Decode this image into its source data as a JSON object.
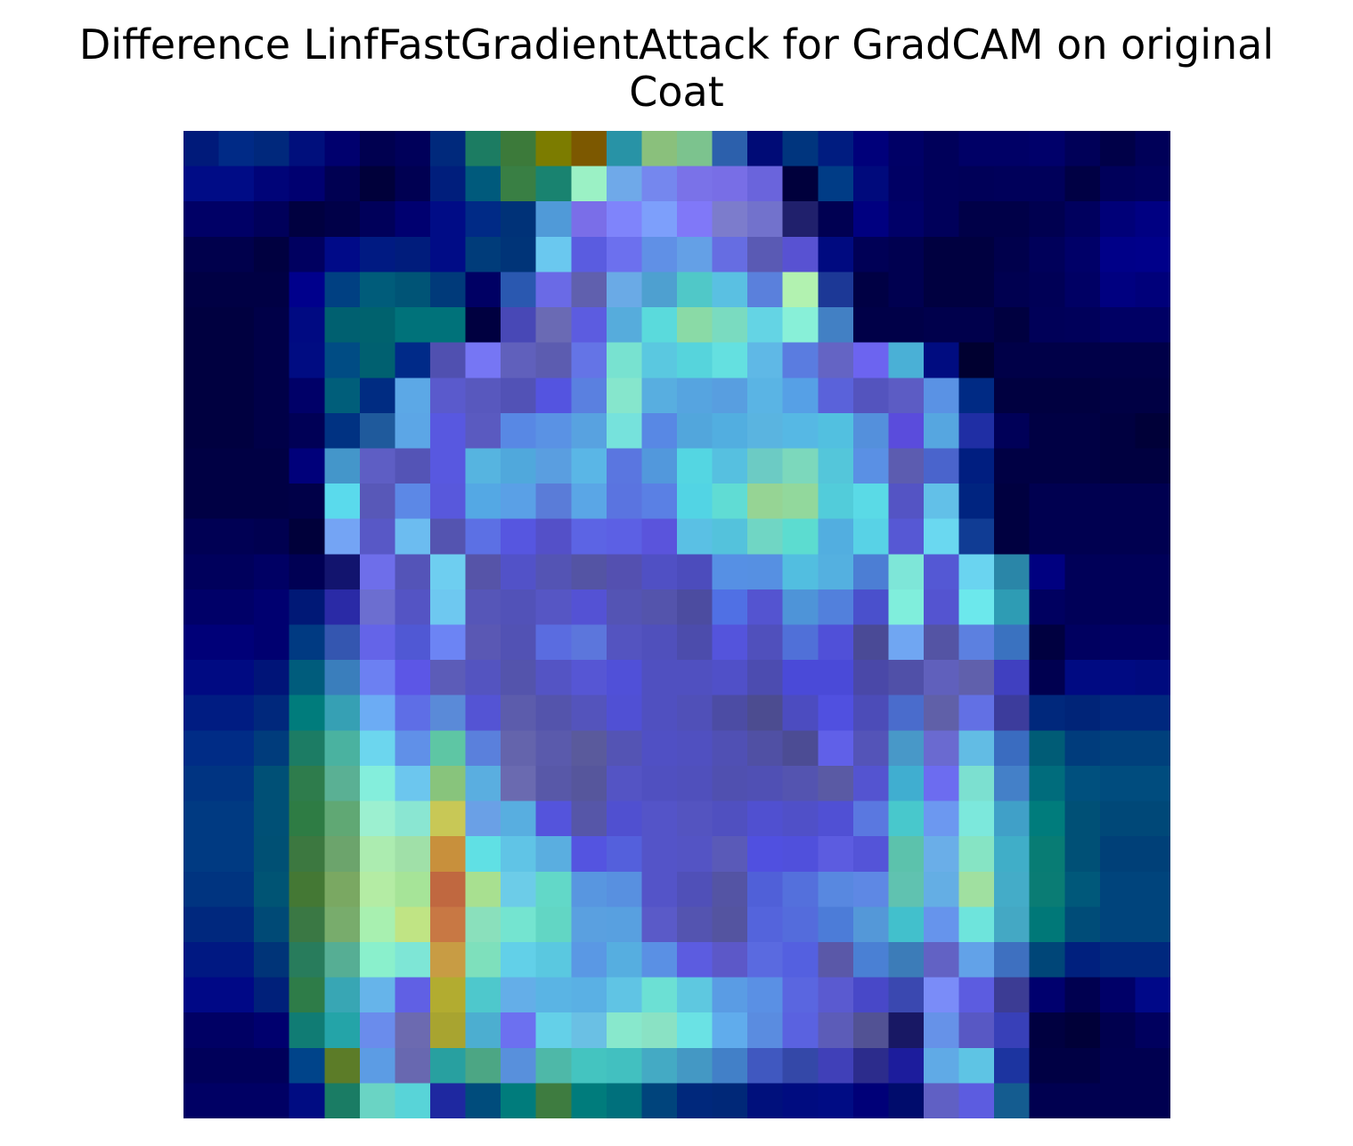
{
  "chart_data": {
    "type": "heatmap",
    "title": "Difference LinfFastGradientAttack for GradCAM on original",
    "subtitle": "Coat",
    "xlabel": "",
    "ylabel": "",
    "axes_visible": false,
    "grid": false,
    "rows": 28,
    "cols": 28,
    "colormap": "jet blended over grayscale image",
    "cells": [
      [
        "#001a7a",
        "#002a86",
        "#00287c",
        "#000f7c",
        "#00006e",
        "#000050",
        "#00005a",
        "#00297c",
        "#1c7c62",
        "#3c7a3a",
        "#7c7c00",
        "#7c5800",
        "#2893a6",
        "#8ac07c",
        "#7cc38e",
        "#2c60ac",
        "#000b76",
        "#00357e",
        "#001c80",
        "#00007a",
        "#000066",
        "#00005a",
        "#000066",
        "#000066",
        "#00006a",
        "#000058",
        "#000048",
        "#000058"
      ],
      [
        "#000c86",
        "#000c86",
        "#000478",
        "#000070",
        "#000052",
        "#00003a",
        "#000052",
        "#001e7c",
        "#005a7c",
        "#397f44",
        "#198370",
        "#9bf1c5",
        "#6fa9e9",
        "#7587ee",
        "#7a72e8",
        "#786ee6",
        "#6a64dc",
        "#00003c",
        "#003c86",
        "#000a7c",
        "#000064",
        "#00005a",
        "#000058",
        "#00005a",
        "#00005a",
        "#000044",
        "#00005a",
        "#00005e"
      ],
      [
        "#000066",
        "#000066",
        "#00005a",
        "#000040",
        "#000048",
        "#00005a",
        "#000070",
        "#000c86",
        "#002a86",
        "#003278",
        "#509ad8",
        "#7a6ee8",
        "#7f84fb",
        "#7d9ffb",
        "#8078f8",
        "#7c7ccc",
        "#7272cc",
        "#20206c",
        "#000052",
        "#000080",
        "#000068",
        "#00005a",
        "#000048",
        "#000048",
        "#000050",
        "#00005e",
        "#000078",
        "#000082"
      ],
      [
        "#00004c",
        "#00004c",
        "#000040",
        "#000060",
        "#000a88",
        "#001a82",
        "#001c7c",
        "#000c86",
        "#003c7a",
        "#003478",
        "#6ac8ef",
        "#5a5ce0",
        "#6c70ee",
        "#6090e6",
        "#64a0e6",
        "#666de2",
        "#5a5ab4",
        "#5852d2",
        "#000a80",
        "#000056",
        "#000050",
        "#000040",
        "#000040",
        "#00004c",
        "#00005a",
        "#000068",
        "#000088",
        "#00008a"
      ],
      [
        "#000044",
        "#000044",
        "#000044",
        "#00008c",
        "#004082",
        "#005c7a",
        "#005476",
        "#003a7a",
        "#000064",
        "#2a58b0",
        "#6a6ae6",
        "#6060ae",
        "#6aaae6",
        "#4ea0d0",
        "#50c8c8",
        "#5ac0e2",
        "#5a80dc",
        "#b2f2b0",
        "#1c3896",
        "#000044",
        "#000050",
        "#000040",
        "#000040",
        "#000050",
        "#000056",
        "#000064",
        "#000080",
        "#00007a"
      ],
      [
        "#000040",
        "#000040",
        "#000048",
        "#000a82",
        "#006070",
        "#00626e",
        "#00727a",
        "#00727a",
        "#000040",
        "#4848b6",
        "#6a6ab4",
        "#5c5ce0",
        "#56acdc",
        "#5adadc",
        "#8adaa6",
        "#7adbc0",
        "#64d4e4",
        "#88f0d8",
        "#4280c4",
        "#000048",
        "#000048",
        "#00004c",
        "#00004c",
        "#000040",
        "#000058",
        "#00005a",
        "#000064",
        "#000064"
      ],
      [
        "#000040",
        "#000040",
        "#000048",
        "#000c82",
        "#004c84",
        "#006070",
        "#002a88",
        "#5050b0",
        "#7676f4",
        "#6060bc",
        "#5c5cb0",
        "#6474e6",
        "#78e2d0",
        "#5ac8e0",
        "#56d4dc",
        "#64e0e0",
        "#5fb8e6",
        "#5a7ce0",
        "#6464c4",
        "#6c64f0",
        "#4ab0d6",
        "#000c80",
        "#000030",
        "#000048",
        "#000048",
        "#000048",
        "#000048",
        "#000048"
      ],
      [
        "#000040",
        "#000040",
        "#000048",
        "#000068",
        "#005e7a",
        "#002c82",
        "#5ca8e6",
        "#5a5acc",
        "#5858be",
        "#5252b6",
        "#5454e0",
        "#5a80e0",
        "#86e6cc",
        "#58aee0",
        "#56a4e0",
        "#589ee0",
        "#5ab4e4",
        "#56a0e6",
        "#5a62da",
        "#5454be",
        "#5c5cc4",
        "#5a92e4",
        "#002a84",
        "#000040",
        "#000040",
        "#000040",
        "#000044",
        "#000044"
      ],
      [
        "#000040",
        "#000040",
        "#000048",
        "#000056",
        "#003282",
        "#1f5a9c",
        "#5ca6e6",
        "#5858e0",
        "#5a5ac0",
        "#5888e4",
        "#5a92e4",
        "#58a2e0",
        "#76e2dc",
        "#5888e4",
        "#52a6dc",
        "#52aee0",
        "#5ab4e0",
        "#56b8e4",
        "#52c0e0",
        "#5490dc",
        "#5a4cdc",
        "#56a6e0",
        "#1f2ea4",
        "#000058",
        "#000044",
        "#000044",
        "#000040",
        "#000038"
      ],
      [
        "#000044",
        "#000044",
        "#000044",
        "#00007a",
        "#4496ca",
        "#5e5ec4",
        "#5454b6",
        "#5858e0",
        "#56b4e0",
        "#50a8dc",
        "#5a9ee0",
        "#5ab6e6",
        "#5a76e0",
        "#5298dc",
        "#54d6e2",
        "#56c0e0",
        "#6ccbc4",
        "#7cd8bc",
        "#54c6da",
        "#5a90e4",
        "#5c5cb0",
        "#4a64cc",
        "#001e80",
        "#000044",
        "#000044",
        "#000044",
        "#000040",
        "#000040"
      ],
      [
        "#000044",
        "#000044",
        "#000044",
        "#000048",
        "#5adaec",
        "#5858b8",
        "#5c88e6",
        "#5858dc",
        "#54a8e4",
        "#5aa0e6",
        "#5a7cd8",
        "#5aa6e6",
        "#5a74e0",
        "#5a80e4",
        "#52d4e4",
        "#60dcd4",
        "#96d494",
        "#92d89c",
        "#52ccda",
        "#5adae6",
        "#5454c4",
        "#62c0e8",
        "#002480",
        "#000040",
        "#000050",
        "#000050",
        "#000050",
        "#000050"
      ],
      [
        "#000054",
        "#000054",
        "#000050",
        "#00003a",
        "#74a4f4",
        "#5858c6",
        "#6cbcf0",
        "#5454b0",
        "#5c70e4",
        "#5656e0",
        "#5450c8",
        "#5c64e4",
        "#5c60e4",
        "#5a54dc",
        "#5ac0e4",
        "#54c2dc",
        "#70d6c4",
        "#5cdcd0",
        "#52aee0",
        "#58d2e6",
        "#5658d4",
        "#6ad8f0",
        "#103c94",
        "#000040",
        "#000050",
        "#000050",
        "#000050",
        "#000050"
      ],
      [
        "#00005c",
        "#00005c",
        "#000064",
        "#000054",
        "#12146e",
        "#6e6eea",
        "#5454b8",
        "#6ecef0",
        "#5654a8",
        "#5252c8",
        "#5454b4",
        "#5454a4",
        "#5450b0",
        "#5050c4",
        "#4c4cbc",
        "#5690e4",
        "#5690e2",
        "#52bee0",
        "#54b0e0",
        "#4c7ed4",
        "#7ee6d8",
        "#5458d4",
        "#6ad4f0",
        "#2a86a8",
        "#000080",
        "#000058",
        "#000058",
        "#000058"
      ],
      [
        "#000068",
        "#000068",
        "#000070",
        "#001876",
        "#2a2aa6",
        "#6c6ed0",
        "#5454c4",
        "#6ec8f0",
        "#5656b8",
        "#5252b8",
        "#5656c4",
        "#5452d4",
        "#5454b4",
        "#5454ac",
        "#4c4ca0",
        "#5070e4",
        "#5454d0",
        "#4e94d8",
        "#5280dc",
        "#4a50cc",
        "#80eedc",
        "#5454d0",
        "#6ce8ec",
        "#2e9cb4",
        "#000060",
        "#000058",
        "#000058",
        "#000058"
      ],
      [
        "#000078",
        "#000078",
        "#000070",
        "#003a82",
        "#3456b0",
        "#6464e8",
        "#5058d4",
        "#6c84f4",
        "#5a58b4",
        "#5252b4",
        "#5a6ce0",
        "#5c76dc",
        "#5454c0",
        "#5050bc",
        "#4c4cac",
        "#5454dc",
        "#5050bc",
        "#5070d8",
        "#5050d8",
        "#4a4a96",
        "#70a6f2",
        "#5454a4",
        "#5c80e0",
        "#3a72c0",
        "#000040",
        "#000060",
        "#000064",
        "#000064"
      ],
      [
        "#000a82",
        "#000a82",
        "#001478",
        "#005c7c",
        "#3a7ebc",
        "#6c80f2",
        "#5c56e6",
        "#5c5cb8",
        "#5454c0",
        "#5454ac",
        "#5454c4",
        "#5656d4",
        "#5050d8",
        "#5050c0",
        "#5050c0",
        "#5050c8",
        "#4c4cb0",
        "#4a4ad8",
        "#4a4ad8",
        "#4a48a8",
        "#5050a8",
        "#6060bc",
        "#6060ac",
        "#4040c0",
        "#000050",
        "#000a82",
        "#000a82",
        "#000a7e"
      ],
      [
        "#001c82",
        "#001c82",
        "#00287c",
        "#007c7c",
        "#36a0b4",
        "#6cacf4",
        "#5e6ee6",
        "#5a8ad8",
        "#5454d4",
        "#5c5cac",
        "#5454ac",
        "#5454bc",
        "#5050d4",
        "#5050c0",
        "#5050b8",
        "#4c4ca4",
        "#4c4c90",
        "#4c4cc0",
        "#5050e0",
        "#4c4cb8",
        "#4a6ccc",
        "#6060a8",
        "#6270e4",
        "#3c3c9c",
        "#00287c",
        "#002478",
        "#00287e",
        "#00287e"
      ],
      [
        "#002c86",
        "#002c86",
        "#003c7c",
        "#1c7c64",
        "#4ab2a0",
        "#6cd6ee",
        "#6090e8",
        "#5ec6a4",
        "#5a80dc",
        "#6464ac",
        "#5a5aac",
        "#5a5a9c",
        "#5454b4",
        "#5050c4",
        "#5050c0",
        "#5050b4",
        "#5050a4",
        "#4c4c94",
        "#6060e8",
        "#5454b8",
        "#4898c8",
        "#6a6ad0",
        "#62bce4",
        "#3a6cc0",
        "#005c76",
        "#003c7c",
        "#00407c",
        "#00407c"
      ],
      [
        "#003482",
        "#003482",
        "#005076",
        "#2e7c4c",
        "#5ab094",
        "#84eedc",
        "#6cc6ee",
        "#88c47c",
        "#5aaee0",
        "#6a6ab0",
        "#5858a8",
        "#56569c",
        "#5454c4",
        "#5050c0",
        "#5050bc",
        "#5050b0",
        "#5050b4",
        "#5454b0",
        "#5a5aa4",
        "#5454d0",
        "#40aed0",
        "#6c6cf0",
        "#7ce0d0",
        "#4480c8",
        "#006c7c",
        "#00507e",
        "#004c7e",
        "#004c7e"
      ],
      [
        "#003a82",
        "#003a82",
        "#005076",
        "#2e7c44",
        "#60a874",
        "#9cf0d0",
        "#8ae6d2",
        "#c8c856",
        "#6aa0e6",
        "#58aee0",
        "#5454dc",
        "#5656a8",
        "#5050d0",
        "#5454c8",
        "#5454c0",
        "#5050c0",
        "#5050d0",
        "#5050c8",
        "#5050d4",
        "#5a78e0",
        "#48c8cc",
        "#6c98f0",
        "#7ce8dc",
        "#40a0c8",
        "#007c7c",
        "#005076",
        "#004878",
        "#004878"
      ],
      [
        "#003a82",
        "#003a82",
        "#005074",
        "#3c7840",
        "#6ca46c",
        "#acecb0",
        "#a0e0a8",
        "#c8903c",
        "#60e0e4",
        "#60c4e6",
        "#5aaee0",
        "#5454e0",
        "#5460dc",
        "#5454c8",
        "#5454c4",
        "#5a5ab8",
        "#5050e0",
        "#5050dc",
        "#5c5ce0",
        "#5454d8",
        "#5cc2ac",
        "#6aaee8",
        "#86e4c4",
        "#40aec8",
        "#087c74",
        "#005076",
        "#004078",
        "#004078"
      ],
      [
        "#003480",
        "#003480",
        "#005474",
        "#447834",
        "#7aa862",
        "#b4eca4",
        "#a6e498",
        "#c06840",
        "#a8e090",
        "#6ccce8",
        "#62d8c8",
        "#5896e0",
        "#5890e0",
        "#5454c8",
        "#5050b8",
        "#5454a4",
        "#5060d8",
        "#5470dc",
        "#5888e0",
        "#5e88e4",
        "#60c2b0",
        "#64aee4",
        "#a0e0a0",
        "#44acc8",
        "#0a7c74",
        "#00587a",
        "#00447c",
        "#00447c"
      ],
      [
        "#00287e",
        "#00287e",
        "#004a76",
        "#3a7844",
        "#78ac6c",
        "#a8f0b0",
        "#c0e484",
        "#c87844",
        "#8ae0bc",
        "#74e4d0",
        "#62d6c4",
        "#5aa0e0",
        "#58a0e0",
        "#5a5ac8",
        "#5454b0",
        "#5454a0",
        "#5464dc",
        "#546cdc",
        "#4c7cd8",
        "#5498d8",
        "#42c0cc",
        "#6694ec",
        "#6ee4dc",
        "#44a8c4",
        "#007878",
        "#004c78",
        "#00447c",
        "#00447c"
      ],
      [
        "#001882",
        "#001882",
        "#003478",
        "#287c5c",
        "#56ae94",
        "#8af0cc",
        "#7ee6d6",
        "#c89c44",
        "#7ee0bc",
        "#62d0e8",
        "#5ac8e0",
        "#5a98e4",
        "#56aee0",
        "#5a90e4",
        "#5c5ce0",
        "#5c58c8",
        "#5a6ae0",
        "#5460e0",
        "#5a58a8",
        "#4a80d4",
        "#3c7cb8",
        "#6262c4",
        "#62a2e8",
        "#3e70c0",
        "#004678",
        "#00207e",
        "#00287e",
        "#00287e"
      ],
      [
        "#000886",
        "#000886",
        "#00207a",
        "#2e7c48",
        "#38a6b4",
        "#66b4ea",
        "#6060e4",
        "#b2ac30",
        "#4ec8cc",
        "#64aee8",
        "#5ab4e4",
        "#5ab0e4",
        "#60c4e4",
        "#6ce0d4",
        "#5ec8e0",
        "#5a9ce4",
        "#5a90e4",
        "#5a66e0",
        "#5a5ad0",
        "#4848c8",
        "#3a48b0",
        "#7a8cf8",
        "#5c5ce0",
        "#3c3c94",
        "#00006e",
        "#000050",
        "#000068",
        "#000888"
      ],
      [
        "#000064",
        "#000064",
        "#00006e",
        "#107c74",
        "#24a4a8",
        "#6a8cec",
        "#6c6ab0",
        "#a8a430",
        "#4caed0",
        "#6c70f0",
        "#64d0e8",
        "#6ac0e4",
        "#88e8cc",
        "#8ae2c4",
        "#6ae2e4",
        "#60acec",
        "#5a8ce0",
        "#5a62e0",
        "#5c5cb8",
        "#525294",
        "#181864",
        "#6692e8",
        "#5858c4",
        "#3840b8",
        "#000040",
        "#000038",
        "#00004e",
        "#00005e"
      ],
      [
        "#00005a",
        "#00005a",
        "#00005a",
        "#00448a",
        "#5c7c28",
        "#5c9ce4",
        "#6868b0",
        "#28a0a0",
        "#4ca684",
        "#5890dc",
        "#4eb8a8",
        "#44c4c0",
        "#42c0c0",
        "#44aac4",
        "#4498c4",
        "#4280c8",
        "#4058c0",
        "#3448a8",
        "#4040b8",
        "#2c2c8c",
        "#1c1c9c",
        "#60aae6",
        "#5ec4e4",
        "#1c34a0",
        "#000044",
        "#000044",
        "#000050",
        "#000050"
      ],
      [
        "#000064",
        "#000064",
        "#000064",
        "#000c82",
        "#1a7c64",
        "#6ad4c4",
        "#58d4d8",
        "#1e28a0",
        "#004c7c",
        "#007c7c",
        "#3e7c40",
        "#007c7c",
        "#00707c",
        "#00447c",
        "#00287c",
        "#002878",
        "#00107c",
        "#000c80",
        "#000c84",
        "#000078",
        "#000c6c",
        "#6060c4",
        "#5c5ce0",
        "#145c90",
        "#000050",
        "#000050",
        "#000050",
        "#000050"
      ]
    ]
  }
}
